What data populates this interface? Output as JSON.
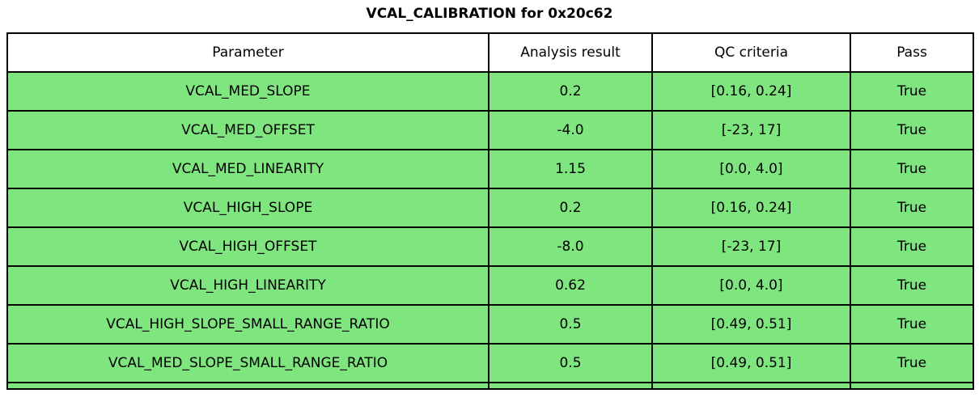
{
  "title": "VCAL_CALIBRATION for 0x20c62",
  "colors": {
    "pass_green": "#7fe57f",
    "border": "#000000",
    "header_bg": "#ffffff"
  },
  "chart_data": {
    "type": "table",
    "title": "VCAL_CALIBRATION for 0x20c62",
    "columns": [
      "Parameter",
      "Analysis result",
      "QC criteria",
      "Pass"
    ],
    "rows": [
      [
        "VCAL_MED_SLOPE",
        "0.2",
        "[0.16, 0.24]",
        "True"
      ],
      [
        "VCAL_MED_OFFSET",
        "-4.0",
        "[-23, 17]",
        "True"
      ],
      [
        "VCAL_MED_LINEARITY",
        "1.15",
        "[0.0, 4.0]",
        "True"
      ],
      [
        "VCAL_HIGH_SLOPE",
        "0.2",
        "[0.16, 0.24]",
        "True"
      ],
      [
        "VCAL_HIGH_OFFSET",
        "-8.0",
        "[-23, 17]",
        "True"
      ],
      [
        "VCAL_HIGH_LINEARITY",
        "0.62",
        "[0.0, 4.0]",
        "True"
      ],
      [
        "VCAL_HIGH_SLOPE_SMALL_RANGE_RATIO",
        "0.5",
        "[0.49, 0.51]",
        "True"
      ],
      [
        "VCAL_MED_SLOPE_SMALL_RANGE_RATIO",
        "0.5",
        "[0.49, 0.51]",
        "True"
      ]
    ],
    "row_pass_flags": [
      true,
      true,
      true,
      true,
      true,
      true,
      true,
      true
    ],
    "layout_hints": {
      "header_background": "#ffffff",
      "pass_row_background": "#7fe57f",
      "grid": "on"
    }
  }
}
